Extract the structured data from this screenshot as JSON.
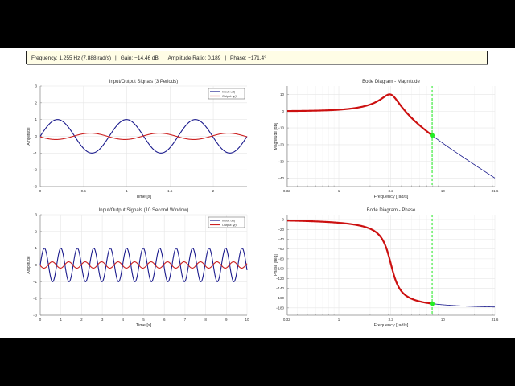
{
  "info": {
    "frequency": "Frequency: 1.255 Hz (7.888 rad/s)",
    "gain": "Gain: −14.46 dB",
    "amplitude_ratio": "Amplitude Ratio: 0.189",
    "phase": "Phase: −171.4°",
    "separator": "|"
  },
  "colors": {
    "input": "#1a1a8c",
    "output": "#cc2020",
    "bode_line": "#1a1a8c",
    "bode_highlight": "#cc1010",
    "marker": "#22ee22",
    "grid": "#e6e6e6",
    "axis": "#888888"
  },
  "chart_data": [
    {
      "id": "io3",
      "type": "line",
      "title": "Input/Output Signals (3 Periods)",
      "xlabel": "Time [s]",
      "ylabel": "Amplitude",
      "xlim": [
        0,
        2.39
      ],
      "ylim": [
        -3,
        3
      ],
      "xticks": [
        0,
        0.5,
        1,
        1.5,
        2
      ],
      "xticklabels": [
        "0",
        "0.5",
        "1",
        "1.5",
        "2"
      ],
      "yticks": [
        -3,
        -2,
        -1,
        0,
        1,
        2,
        3
      ],
      "grid": true,
      "legend": [
        "Input: u(t)",
        "Output: y(t)"
      ],
      "legend_position": "upper right",
      "series": [
        {
          "name": "Input: u(t)",
          "func": "sin",
          "amplitude": 1.0,
          "freq_hz": 1.255,
          "phase_deg": 0
        },
        {
          "name": "Output: y(t)",
          "func": "sin",
          "amplitude": 0.189,
          "freq_hz": 1.255,
          "phase_deg": -171.4
        }
      ]
    },
    {
      "id": "io10",
      "type": "line",
      "title": "Input/Output Signals (10 Second Window)",
      "xlabel": "Time [s]",
      "ylabel": "Amplitude",
      "xlim": [
        0,
        10
      ],
      "ylim": [
        -3,
        3
      ],
      "xticks": [
        0,
        1,
        2,
        3,
        4,
        5,
        6,
        7,
        8,
        9,
        10
      ],
      "xticklabels": [
        "0",
        "1",
        "2",
        "3",
        "4",
        "5",
        "6",
        "7",
        "8",
        "9",
        "10"
      ],
      "yticks": [
        -3,
        -2,
        -1,
        0,
        1,
        2,
        3
      ],
      "grid": true,
      "legend": [
        "Input: u(t)",
        "Output: y(t)"
      ],
      "legend_position": "upper right",
      "series": [
        {
          "name": "Input: u(t)",
          "func": "sin",
          "amplitude": 1.0,
          "freq_hz": 1.255,
          "phase_deg": 0
        },
        {
          "name": "Output: y(t)",
          "func": "sin",
          "amplitude": 0.189,
          "freq_hz": 1.255,
          "phase_deg": -171.4
        }
      ]
    },
    {
      "id": "bodemag",
      "type": "line",
      "title": "Bode Diagram - Magnitude",
      "xlabel": "Frequency [rad/s]",
      "ylabel": "Magnitude [dB]",
      "xscale": "log",
      "xlim": [
        0.32,
        31.6
      ],
      "ylim": [
        -45,
        15
      ],
      "xticks": [
        0.316,
        1,
        3.16,
        10,
        31.6
      ],
      "xticklabels": [
        "0.32",
        "1",
        "3.2",
        "10",
        "31.6"
      ],
      "yticks": [
        -40,
        -30,
        -20,
        -10,
        0,
        10
      ],
      "grid": true,
      "system": {
        "wn": 3.162,
        "zeta": 0.16
      },
      "marker": {
        "freq": 7.888,
        "value": -14.46
      },
      "highlight_until": 7.888
    },
    {
      "id": "bodephase",
      "type": "line",
      "title": "Bode Diagram - Phase",
      "xlabel": "Frequency [rad/s]",
      "ylabel": "Phase [deg]",
      "xscale": "log",
      "xlim": [
        0.32,
        31.6
      ],
      "ylim": [
        -195,
        10
      ],
      "xticks": [
        0.316,
        1,
        3.16,
        10,
        31.6
      ],
      "xticklabels": [
        "0.32",
        "1",
        "3.2",
        "10",
        "31.6"
      ],
      "yticks": [
        -180,
        -160,
        -140,
        -120,
        -100,
        -80,
        -60,
        -40,
        -20,
        0
      ],
      "grid": true,
      "system": {
        "wn": 3.162,
        "zeta": 0.16
      },
      "marker": {
        "freq": 7.888,
        "value": -171.4
      },
      "highlight_until": 7.888
    }
  ]
}
